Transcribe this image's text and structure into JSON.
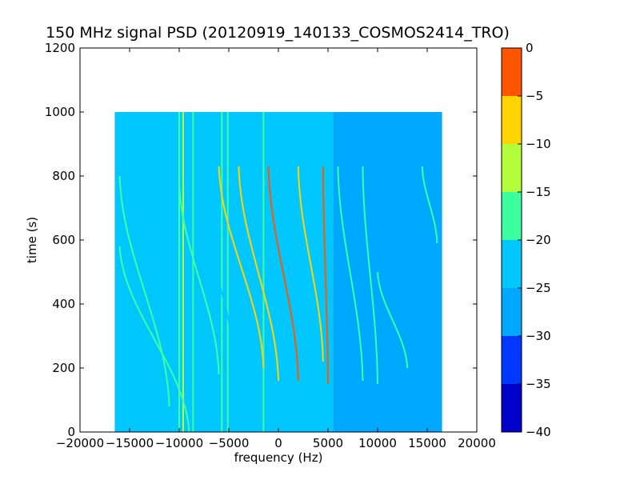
{
  "chart_data": {
    "type": "heatmap",
    "title": "150 MHz signal PSD (20120919_140133_COSMOS2414_TRO)",
    "xlabel": "frequency (Hz)",
    "ylabel": "time (s)",
    "xlim": [
      -20000,
      20000
    ],
    "ylim": [
      0,
      1200
    ],
    "xticks": [
      -20000,
      -15000,
      -10000,
      -5000,
      0,
      5000,
      10000,
      15000,
      20000
    ],
    "xtick_labels": [
      "−20000",
      "−15000",
      "−10000",
      "−5000",
      "0",
      "5000",
      "10000",
      "15000",
      "20000"
    ],
    "yticks": [
      0,
      200,
      400,
      600,
      800,
      1000,
      1200
    ],
    "ytick_labels": [
      "0",
      "200",
      "400",
      "600",
      "800",
      "1000",
      "1200"
    ],
    "grid": false,
    "data_extent": {
      "x": [
        -16500,
        16500
      ],
      "y": [
        0,
        1000
      ]
    },
    "background_regions": [
      {
        "x": [
          -16500,
          5500
        ],
        "level": -22.5
      },
      {
        "x": [
          5500,
          16500
        ],
        "level": -27.5
      }
    ],
    "vertical_lines": [
      {
        "x": -10000,
        "level": -17.5
      },
      {
        "x": -9600,
        "level": -12.5
      },
      {
        "x": -8600,
        "level": -17.5
      },
      {
        "x": -5700,
        "level": -17.5
      },
      {
        "x": -5100,
        "level": -17.5
      },
      {
        "x": -3800,
        "level": -22.5
      },
      {
        "x": -1500,
        "level": -17.5
      }
    ],
    "tracks": [
      {
        "start": [
          -16000,
          800
        ],
        "end": [
          -11000,
          80
        ],
        "level": -17.5
      },
      {
        "start": [
          -16000,
          580
        ],
        "end": [
          -9000,
          0
        ],
        "level": -17.5
      },
      {
        "start": [
          -10000,
          780
        ],
        "end": [
          -6000,
          180
        ],
        "level": -17.5
      },
      {
        "start": [
          -7500,
          720
        ],
        "end": [
          -4500,
          220
        ],
        "level": -22.5
      },
      {
        "start": [
          -6000,
          830
        ],
        "end": [
          -1500,
          200
        ],
        "level": -7.5
      },
      {
        "start": [
          -4000,
          830
        ],
        "end": [
          0,
          160
        ],
        "level": -7.5
      },
      {
        "start": [
          -1000,
          830
        ],
        "end": [
          2000,
          160
        ],
        "level": -2.5
      },
      {
        "start": [
          2000,
          830
        ],
        "end": [
          4500,
          220
        ],
        "level": -7.5
      },
      {
        "start": [
          4500,
          830
        ],
        "end": [
          5000,
          150
        ],
        "level": -2.5
      },
      {
        "start": [
          6000,
          830
        ],
        "end": [
          8500,
          160
        ],
        "level": -17.5
      },
      {
        "start": [
          8500,
          830
        ],
        "end": [
          10000,
          150
        ],
        "level": -17.5
      },
      {
        "start": [
          10000,
          500
        ],
        "end": [
          13000,
          200
        ],
        "level": -17.5
      },
      {
        "start": [
          14500,
          830
        ],
        "end": [
          16000,
          590
        ],
        "level": -17.5
      }
    ],
    "colorbar": {
      "min": -40,
      "max": 0,
      "bands": [
        {
          "from": -40,
          "to": -35,
          "color": "#0000c8"
        },
        {
          "from": -35,
          "to": -30,
          "color": "#0038ff"
        },
        {
          "from": -30,
          "to": -25,
          "color": "#00a8ff"
        },
        {
          "from": -25,
          "to": -20,
          "color": "#00c8ff"
        },
        {
          "from": -20,
          "to": -15,
          "color": "#3cffa0"
        },
        {
          "from": -15,
          "to": -10,
          "color": "#b4ff3c"
        },
        {
          "from": -10,
          "to": -5,
          "color": "#ffd400"
        },
        {
          "from": -5,
          "to": 0,
          "color": "#ff5500"
        }
      ],
      "top_color": "#cc0000",
      "ticks": [
        0,
        -5,
        -10,
        -15,
        -20,
        -25,
        -30,
        -35,
        -40
      ],
      "tick_labels": [
        "0",
        "−5",
        "−10",
        "−15",
        "−20",
        "−25",
        "−30",
        "−35",
        "−40"
      ]
    }
  }
}
